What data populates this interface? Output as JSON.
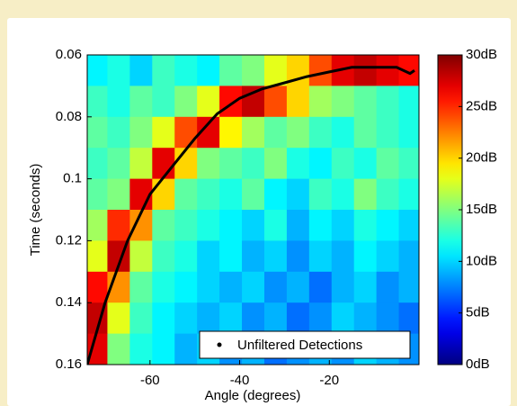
{
  "chart_data": {
    "type": "heatmap",
    "xlabel": "Angle (degrees)",
    "ylabel": "Time (seconds)",
    "xlim": [
      -74,
      0
    ],
    "xticks": [
      -60,
      -40,
      -20
    ],
    "ylim": [
      0.06,
      0.16
    ],
    "yticks": [
      0.06,
      0.08,
      0.1,
      0.12,
      0.14,
      0.16
    ],
    "y_reversed": true,
    "x": [
      -72,
      -67,
      -62,
      -57,
      -52,
      -47,
      -42,
      -37,
      -32,
      -27,
      -22,
      -17,
      -12,
      -7,
      -2
    ],
    "y": [
      0.065,
      0.075,
      0.085,
      0.095,
      0.105,
      0.115,
      0.125,
      0.135,
      0.145,
      0.155
    ],
    "z": [
      [
        11,
        12,
        10,
        13,
        12,
        11,
        14,
        15,
        18,
        20,
        24,
        27,
        28,
        27,
        26
      ],
      [
        13,
        12,
        14,
        13,
        15,
        18,
        26,
        28,
        24,
        20,
        16,
        15,
        14,
        13,
        12
      ],
      [
        14,
        13,
        15,
        18,
        24,
        27,
        19,
        16,
        14,
        15,
        13,
        12,
        14,
        13,
        12
      ],
      [
        13,
        14,
        17,
        27,
        20,
        15,
        14,
        13,
        15,
        12,
        11,
        13,
        12,
        14,
        13
      ],
      [
        14,
        15,
        27,
        20,
        14,
        13,
        12,
        14,
        11,
        10,
        13,
        12,
        15,
        13,
        12
      ],
      [
        16,
        25,
        22,
        14,
        13,
        12,
        11,
        10,
        12,
        9,
        11,
        10,
        12,
        11,
        10
      ],
      [
        18,
        28,
        17,
        13,
        12,
        10,
        11,
        9,
        10,
        8,
        10,
        9,
        11,
        10,
        9
      ],
      [
        26,
        22,
        14,
        12,
        11,
        10,
        9,
        10,
        8,
        9,
        7,
        9,
        10,
        8,
        9
      ],
      [
        28,
        18,
        13,
        11,
        10,
        9,
        10,
        8,
        9,
        7,
        8,
        10,
        9,
        8,
        7
      ],
      [
        27,
        15,
        12,
        11,
        9,
        10,
        8,
        9,
        7,
        8,
        9,
        8,
        10,
        9,
        8
      ]
    ],
    "clim": [
      0,
      30
    ],
    "cticks": [
      {
        "value": 0,
        "label": "0dB"
      },
      {
        "value": 5,
        "label": "5dB"
      },
      {
        "value": 10,
        "label": "10dB"
      },
      {
        "value": 15,
        "label": "15dB"
      },
      {
        "value": 20,
        "label": "20dB"
      },
      {
        "value": 25,
        "label": "25dB"
      },
      {
        "value": 30,
        "label": "30dB"
      }
    ],
    "colormap": "jet",
    "series": [
      {
        "name": "Unfiltered Detections",
        "color": "#000000",
        "x": [
          -74,
          -70,
          -65,
          -60,
          -55,
          -50,
          -45,
          -40,
          -35,
          -30,
          -25,
          -20,
          -15,
          -10,
          -5,
          -2,
          -1
        ],
        "values": [
          0.16,
          0.14,
          0.12,
          0.105,
          0.096,
          0.087,
          0.079,
          0.074,
          0.071,
          0.069,
          0.067,
          0.0655,
          0.064,
          0.064,
          0.064,
          0.066,
          0.065
        ]
      }
    ],
    "legend": "lower right",
    "grid": false
  }
}
